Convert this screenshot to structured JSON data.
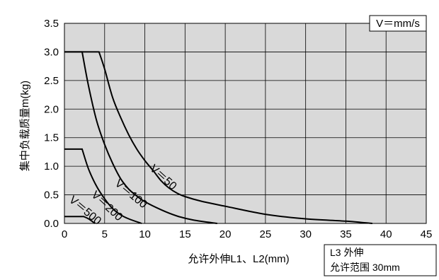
{
  "chart_data": {
    "type": "line",
    "title": "",
    "xlabel": "允许外伸L1、L2(mm)",
    "ylabel": "集中负载质量m(kg)",
    "xlim": [
      0,
      45
    ],
    "ylim": [
      0,
      3.5
    ],
    "xticks": [
      "0",
      "5",
      "10",
      "15",
      "20",
      "25",
      "30",
      "35",
      "40",
      "45"
    ],
    "yticks": [
      "0.0",
      "0.5",
      "1.0",
      "1.5",
      "2.0",
      "2.5",
      "3.0",
      "3.5"
    ],
    "grid": true,
    "unit_label": "V＝mm/s",
    "note_lines": [
      "L3 外伸",
      "允许范围 30mm"
    ],
    "series": [
      {
        "name": "V＝50",
        "label": "V＝50",
        "points": [
          [
            0,
            3.0
          ],
          [
            4.3,
            3.0
          ],
          [
            5,
            2.7
          ],
          [
            6,
            2.2
          ],
          [
            7,
            1.85
          ],
          [
            8,
            1.55
          ],
          [
            9,
            1.3
          ],
          [
            10,
            1.1
          ],
          [
            11,
            0.93
          ],
          [
            12,
            0.75
          ],
          [
            13,
            0.62
          ],
          [
            14,
            0.53
          ],
          [
            15,
            0.47
          ],
          [
            17,
            0.39
          ],
          [
            20,
            0.3
          ],
          [
            25,
            0.16
          ],
          [
            30,
            0.08
          ],
          [
            35,
            0.04
          ],
          [
            38.3,
            0.0
          ]
        ]
      },
      {
        "name": "V＝100",
        "label": "V＝100",
        "points": [
          [
            0,
            3.0
          ],
          [
            2.2,
            3.0
          ],
          [
            3,
            2.4
          ],
          [
            4,
            1.8
          ],
          [
            5,
            1.38
          ],
          [
            6,
            1.05
          ],
          [
            7,
            0.78
          ],
          [
            8,
            0.6
          ],
          [
            9,
            0.48
          ],
          [
            10,
            0.38
          ],
          [
            12,
            0.24
          ],
          [
            14,
            0.13
          ],
          [
            16,
            0.06
          ],
          [
            19,
            0.0
          ]
        ]
      },
      {
        "name": "V＝200",
        "label": "V＝200",
        "points": [
          [
            0,
            1.3
          ],
          [
            2.2,
            1.3
          ],
          [
            3,
            0.95
          ],
          [
            4,
            0.65
          ],
          [
            5,
            0.43
          ],
          [
            6,
            0.26
          ],
          [
            7,
            0.15
          ],
          [
            8,
            0.08
          ],
          [
            9.6,
            0.0
          ]
        ]
      },
      {
        "name": "V＝500",
        "label": "V＝500",
        "points": [
          [
            0,
            0.12
          ],
          [
            2.4,
            0.12
          ],
          [
            3,
            0.08
          ],
          [
            3.8,
            0.0
          ]
        ]
      }
    ]
  }
}
